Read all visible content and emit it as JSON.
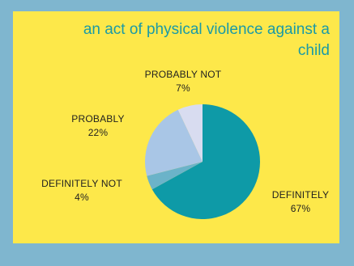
{
  "chart_data": {
    "type": "pie",
    "title": "an act of physical violence against a child",
    "categories": [
      "DEFINITELY",
      "DEFINITELY NOT",
      "PROBABLY",
      "PROBABLY NOT"
    ],
    "values": [
      67,
      4,
      22,
      7
    ],
    "labels": [
      "67%",
      "4%",
      "22%",
      "7%"
    ],
    "colors": [
      "#0e9aa7",
      "#6bb3c9",
      "#a9c6e6",
      "#d8dcf0"
    ]
  },
  "colors": {
    "background": "#7fb6cf",
    "card": "#fde84a",
    "title": "#1a9aa6"
  }
}
